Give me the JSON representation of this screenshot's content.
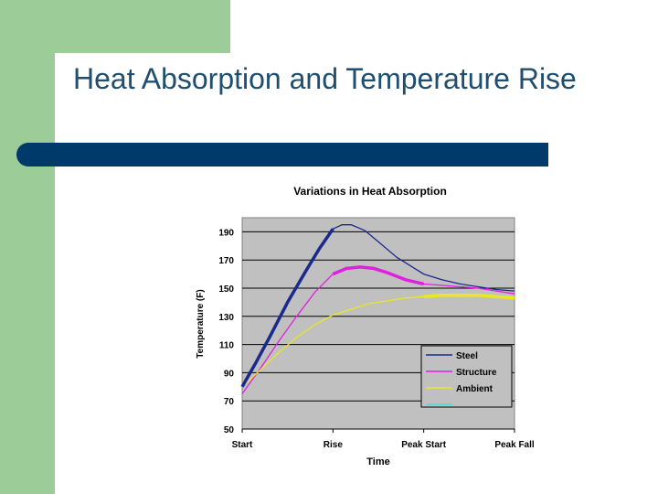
{
  "slide": {
    "title": "Heat Absorption and Temperature Rise"
  },
  "colors": {
    "green": "#9ccc98",
    "title_text": "#1f4e6e",
    "title_bar": "#003a6b"
  },
  "chart_data": {
    "type": "line",
    "title": "Variations in Heat Absorption",
    "xlabel": "Time",
    "ylabel": "Temperature (F)",
    "categories": [
      "Start",
      "Rise",
      "Peak Start",
      "Peak Fall"
    ],
    "xlim": [
      0,
      3
    ],
    "ylim": [
      50,
      200
    ],
    "yticks": [
      50,
      70,
      90,
      110,
      130,
      150,
      170,
      190
    ],
    "grid": true,
    "plot_background": "#c0c0c0",
    "legend": "bottom-right",
    "series": [
      {
        "name": "Steel",
        "color": "#1a2a8c",
        "x": [
          0,
          0.15,
          0.3,
          0.5,
          0.7,
          0.85,
          1.0,
          1.1,
          1.2,
          1.35,
          1.5,
          1.7,
          1.9,
          2.0,
          2.2,
          2.4,
          2.6,
          2.8,
          3.0
        ],
        "values": [
          80,
          97,
          115,
          140,
          162,
          178,
          192,
          195,
          195,
          191,
          183,
          172,
          164,
          160,
          156,
          153,
          151,
          149,
          148
        ]
      },
      {
        "name": "Structure",
        "color": "#e020e0",
        "x": [
          0,
          0.2,
          0.4,
          0.6,
          0.8,
          1.0,
          1.15,
          1.3,
          1.45,
          1.6,
          1.8,
          2.0,
          2.2,
          2.4,
          2.6,
          2.8,
          3.0
        ],
        "values": [
          75,
          93,
          112,
          130,
          147,
          160,
          164,
          165,
          164,
          161,
          156,
          153,
          152,
          151,
          150,
          148,
          146
        ]
      },
      {
        "name": "Ambient",
        "color": "#e8e820",
        "x": [
          0,
          0.2,
          0.4,
          0.6,
          0.8,
          1.0,
          1.2,
          1.4,
          1.6,
          1.8,
          2.0,
          2.2,
          2.4,
          2.6,
          2.8,
          3.0
        ],
        "values": [
          80,
          92,
          104,
          115,
          124,
          131,
          135,
          139,
          141,
          143,
          144,
          145,
          145,
          145,
          144,
          143
        ]
      }
    ]
  }
}
